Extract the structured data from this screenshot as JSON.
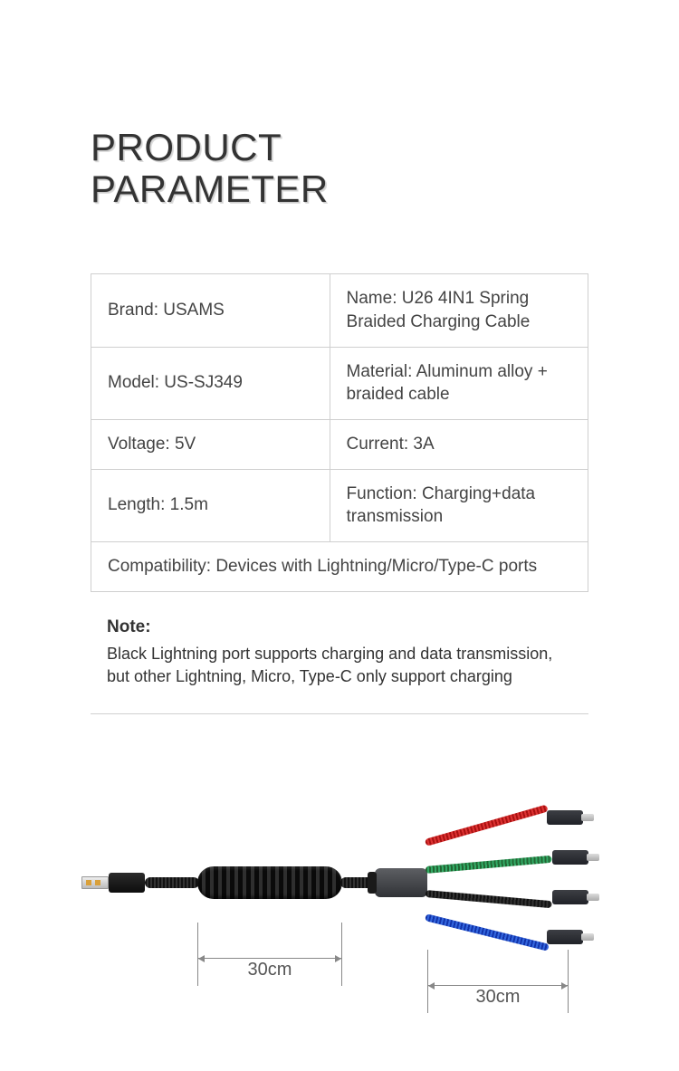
{
  "title_line1": "PRODUCT",
  "title_line2": "PARAMETER",
  "params": {
    "brand": "Brand: USAMS",
    "name": "Name: U26 4IN1 Spring Braided Charging Cable",
    "model": "Model: US-SJ349",
    "material": "Material: Aluminum alloy + braided cable",
    "voltage": "Voltage: 5V",
    "current": "Current: 3A",
    "length": "Length: 1.5m",
    "function": "Function: Charging+data transmission",
    "compatibility": "Compatibility: Devices with Lightning/Micro/Type-C ports"
  },
  "note": {
    "label": "Note:",
    "text": "Black Lightning port supports charging and data transmission, but other Lightning, Micro, Type-C only support charging"
  },
  "diagram": {
    "dim1": "30cm",
    "dim2": "30cm",
    "branch_colors": {
      "red": "#cc2222",
      "green": "#2f7a3a",
      "black": "#1a1a1a",
      "blue": "#2244cc"
    },
    "hub_color": "#4a4d52",
    "usb_body_color": "#151515"
  },
  "colors": {
    "text": "#333333",
    "border": "#cfcfcf",
    "background": "#ffffff"
  },
  "typography": {
    "title_fontsize_pt": 32,
    "body_fontsize_pt": 14
  }
}
